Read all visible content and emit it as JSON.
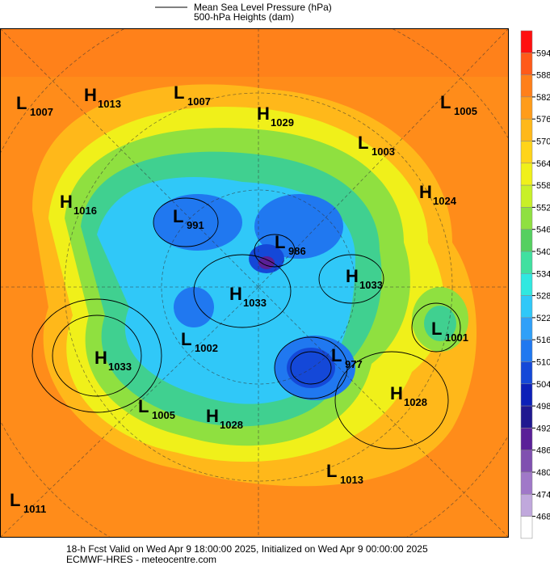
{
  "legend": {
    "pressure": "Mean Sea Level Pressure (hPa)",
    "heights": "500-hPa Heights (dam)"
  },
  "centers": [
    {
      "kind": "L",
      "value": "1007"
    },
    {
      "kind": "H",
      "value": "1013"
    },
    {
      "kind": "L",
      "value": "1007"
    },
    {
      "kind": "H",
      "value": "1029"
    },
    {
      "kind": "L",
      "value": "1005"
    },
    {
      "kind": "L",
      "value": "1003"
    },
    {
      "kind": "H",
      "value": "1024"
    },
    {
      "kind": "H",
      "value": "1016"
    },
    {
      "kind": "L",
      "value": "991"
    },
    {
      "kind": "L",
      "value": "986"
    },
    {
      "kind": "H",
      "value": "1033"
    },
    {
      "kind": "H",
      "value": "1033"
    },
    {
      "kind": "L",
      "value": "1001"
    },
    {
      "kind": "H",
      "value": "1033"
    },
    {
      "kind": "L",
      "value": "1002"
    },
    {
      "kind": "L",
      "value": "977"
    },
    {
      "kind": "H",
      "value": "1028"
    },
    {
      "kind": "L",
      "value": "1005"
    },
    {
      "kind": "H",
      "value": "1028"
    },
    {
      "kind": "L",
      "value": "1013"
    },
    {
      "kind": "L",
      "value": "1011"
    }
  ],
  "colorbar": {
    "ticks": [
      594,
      588,
      582,
      576,
      570,
      564,
      558,
      552,
      546,
      540,
      534,
      528,
      522,
      516,
      510,
      504,
      498,
      492,
      486,
      480,
      474,
      468
    ],
    "colors": [
      "#ff1010",
      "#ff5a1a",
      "#ff7f1a",
      "#ff9c1a",
      "#ffb81a",
      "#ffd41a",
      "#f0f01a",
      "#c8f028",
      "#8fe040",
      "#55d060",
      "#40e0a0",
      "#30e8e0",
      "#30c8f8",
      "#30a0f8",
      "#2078f0",
      "#1448d8",
      "#0c20b8",
      "#201890",
      "#5a2098",
      "#8050b0",
      "#a078c8",
      "#c0a8dc",
      "#ffffff"
    ]
  },
  "footer": {
    "line1": "18-h Fcst Valid on Wed Apr  9 18:00:00 2025, Initialized on Wed Apr  9 00:00:00 2025",
    "line2": "ECMWF-HRES  - meteocentre.com"
  }
}
